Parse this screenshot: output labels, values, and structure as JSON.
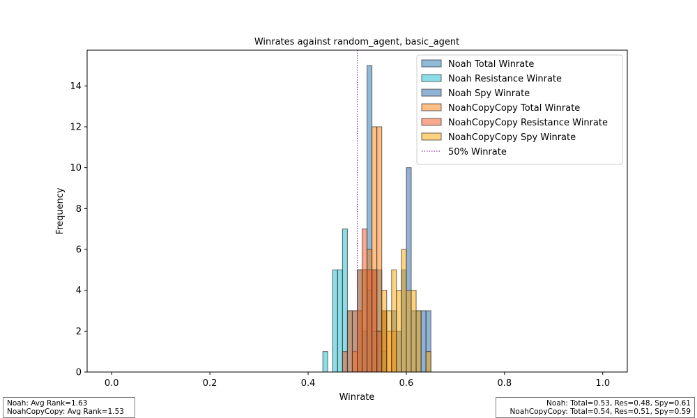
{
  "chart_data": {
    "type": "histogram",
    "title": "Winrates against random_agent, basic_agent",
    "xlabel": "Winrate",
    "ylabel": "Frequency",
    "xlim": [
      -0.05,
      1.05
    ],
    "ylim": [
      0,
      15.75
    ],
    "xticks": [
      "0.0",
      "0.2",
      "0.4",
      "0.6",
      "0.8",
      "1.0"
    ],
    "yticks": [
      "0",
      "2",
      "4",
      "6",
      "8",
      "10",
      "12",
      "14"
    ],
    "bin_width": 0.01,
    "legend_position": "top-right",
    "reference_line": {
      "x": 0.5,
      "label": "50% Winrate",
      "color": "#800080",
      "style": "dotted"
    },
    "series": [
      {
        "name": "Noah Total Winrate",
        "color": "#1f77b4",
        "bins": [
          [
            0.5,
            3
          ],
          [
            0.51,
            2
          ],
          [
            0.52,
            15
          ],
          [
            0.53,
            5
          ],
          [
            0.54,
            5
          ],
          [
            0.55,
            3
          ]
        ]
      },
      {
        "name": "Noah Resistance Winrate",
        "color": "#17becf",
        "bins": [
          [
            0.43,
            1
          ],
          [
            0.45,
            5
          ],
          [
            0.46,
            5
          ],
          [
            0.47,
            7
          ],
          [
            0.48,
            3
          ],
          [
            0.49,
            3
          ],
          [
            0.5,
            5
          ],
          [
            0.51,
            5
          ],
          [
            0.52,
            4
          ],
          [
            0.53,
            2
          ],
          [
            0.54,
            2
          ],
          [
            0.55,
            1
          ]
        ]
      },
      {
        "name": "Noah Spy Winrate",
        "color": "#2166ac",
        "bins": [
          [
            0.55,
            3
          ],
          [
            0.57,
            3
          ],
          [
            0.58,
            2
          ],
          [
            0.59,
            5
          ],
          [
            0.6,
            10
          ],
          [
            0.61,
            3
          ],
          [
            0.62,
            3
          ],
          [
            0.63,
            3
          ],
          [
            0.64,
            3
          ]
        ]
      },
      {
        "name": "NoahCopyCopy Total Winrate",
        "color": "#ff7f0e",
        "bins": [
          [
            0.49,
            1
          ],
          [
            0.5,
            3
          ],
          [
            0.51,
            5
          ],
          [
            0.52,
            6
          ],
          [
            0.53,
            12
          ],
          [
            0.54,
            12
          ],
          [
            0.55,
            3
          ],
          [
            0.56,
            2
          ],
          [
            0.57,
            2
          ]
        ]
      },
      {
        "name": "NoahCopyCopy Resistance Winrate",
        "color": "#f4511e",
        "bins": [
          [
            0.47,
            1
          ],
          [
            0.48,
            3
          ],
          [
            0.49,
            3
          ],
          [
            0.5,
            5
          ],
          [
            0.51,
            7
          ],
          [
            0.52,
            5
          ],
          [
            0.53,
            5
          ],
          [
            0.54,
            2
          ]
        ]
      },
      {
        "name": "NoahCopyCopy Spy Winrate",
        "color": "#ffa500",
        "bins": [
          [
            0.55,
            4
          ],
          [
            0.56,
            3
          ],
          [
            0.57,
            5
          ],
          [
            0.58,
            4
          ],
          [
            0.59,
            6
          ],
          [
            0.6,
            4
          ],
          [
            0.61,
            4
          ],
          [
            0.62,
            3
          ],
          [
            0.64,
            1
          ]
        ]
      }
    ]
  },
  "info_left": {
    "line1": "Noah: Avg Rank=1.63",
    "line2": "NoahCopyCopy: Avg Rank=1.53"
  },
  "info_right": {
    "line1": "Noah: Total=0.53, Res=0.48, Spy=0.61",
    "line2": "NoahCopyCopy: Total=0.54, Res=0.51, Spy=0.59"
  }
}
